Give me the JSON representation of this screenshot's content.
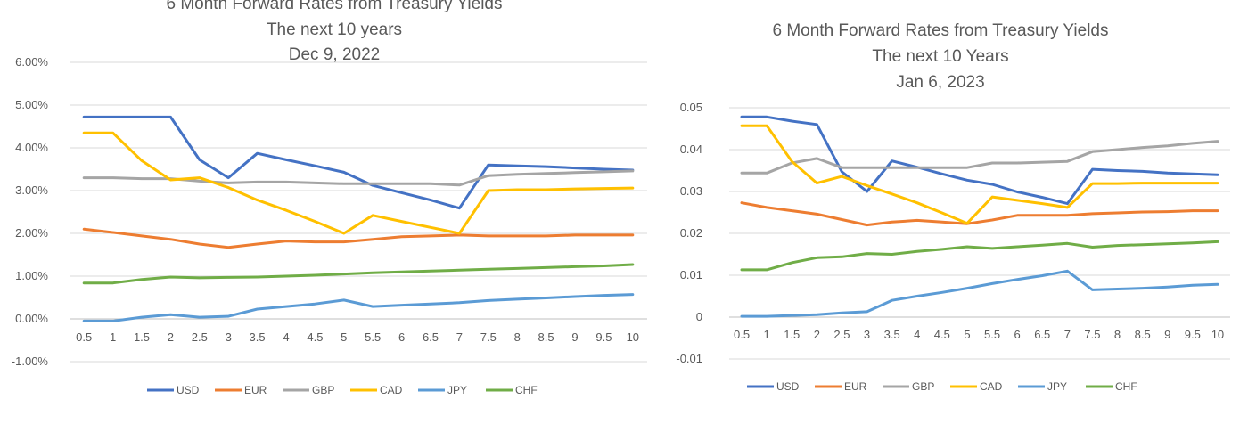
{
  "chart_data": [
    {
      "type": "line",
      "title_lines": [
        "6 Month Forward Rates from Treasury Yields",
        "The next 10 years",
        "Dec 9, 2022"
      ],
      "x": [
        "0.5",
        "1",
        "1.5",
        "2",
        "2.5",
        "3",
        "3.5",
        "4",
        "4.5",
        "5",
        "5.5",
        "6",
        "6.5",
        "7",
        "7.5",
        "8",
        "8.5",
        "9",
        "9.5",
        "10"
      ],
      "y_ticks": [
        -0.01,
        0,
        0.01,
        0.02,
        0.03,
        0.04,
        0.05,
        0.06
      ],
      "y_tick_labels": [
        "-1.00%",
        "0.00%",
        "1.00%",
        "2.00%",
        "3.00%",
        "4.00%",
        "5.00%",
        "6.00%"
      ],
      "ylim": [
        -0.01,
        0.06
      ],
      "legend_position": "bottom",
      "series": [
        {
          "name": "USD",
          "color": "#4472C4",
          "values": [
            0.0472,
            0.0472,
            0.0472,
            0.0472,
            0.0372,
            0.033,
            0.0387,
            0.0372,
            0.0358,
            0.0343,
            0.0312,
            0.0295,
            0.0278,
            0.0259,
            0.036,
            0.0358,
            0.0356,
            0.0353,
            0.035,
            0.0348
          ]
        },
        {
          "name": "EUR",
          "color": "#ED7D31",
          "values": [
            0.021,
            0.0202,
            0.0194,
            0.0186,
            0.0175,
            0.0167,
            0.0175,
            0.0182,
            0.018,
            0.018,
            0.0186,
            0.0192,
            0.0194,
            0.0196,
            0.0194,
            0.0194,
            0.0194,
            0.0196,
            0.0196,
            0.0196
          ]
        },
        {
          "name": "GBP",
          "color": "#A5A5A5",
          "values": [
            0.033,
            0.033,
            0.0328,
            0.0328,
            0.0322,
            0.0318,
            0.032,
            0.032,
            0.0318,
            0.0316,
            0.0316,
            0.0316,
            0.0316,
            0.0313,
            0.0335,
            0.0338,
            0.034,
            0.0342,
            0.0344,
            0.0346
          ]
        },
        {
          "name": "CAD",
          "color": "#FFC000",
          "values": [
            0.0435,
            0.0435,
            0.037,
            0.0325,
            0.033,
            0.0307,
            0.0278,
            0.0254,
            0.0228,
            0.02,
            0.0242,
            0.0228,
            0.0214,
            0.02,
            0.03,
            0.0302,
            0.0302,
            0.0304,
            0.0305,
            0.0306
          ]
        },
        {
          "name": "JPY",
          "color": "#5B9BD5",
          "values": [
            -0.0005,
            -0.0005,
            0.0004,
            0.001,
            0.0004,
            0.0006,
            0.0023,
            0.0029,
            0.0035,
            0.0044,
            0.0029,
            0.0032,
            0.0035,
            0.0038,
            0.0043,
            0.0046,
            0.0049,
            0.0052,
            0.0055,
            0.0057
          ]
        },
        {
          "name": "CHF",
          "color": "#70AD47",
          "values": [
            0.0084,
            0.0084,
            0.0092,
            0.0098,
            0.0096,
            0.0097,
            0.0098,
            0.01,
            0.0102,
            0.0105,
            0.0108,
            0.011,
            0.0112,
            0.0114,
            0.0116,
            0.0118,
            0.012,
            0.0122,
            0.0124,
            0.0127
          ]
        }
      ]
    },
    {
      "type": "line",
      "title_lines": [
        "6 Month Forward Rates from Treasury Yields",
        "The next 10 Years",
        "Jan 6, 2023"
      ],
      "x": [
        "0.5",
        "1",
        "1.5",
        "2",
        "2.5",
        "3",
        "3.5",
        "4",
        "4.5",
        "5",
        "5.5",
        "6",
        "6.5",
        "7",
        "7.5",
        "8",
        "8.5",
        "9",
        "9.5",
        "10"
      ],
      "y_ticks": [
        -0.01,
        0,
        0.01,
        0.02,
        0.03,
        0.04,
        0.05
      ],
      "y_tick_labels": [
        "-0.01",
        "0",
        "0.01",
        "0.02",
        "0.03",
        "0.04",
        "0.05"
      ],
      "ylim": [
        -0.01,
        0.05
      ],
      "legend_position": "bottom",
      "series": [
        {
          "name": "USD",
          "color": "#4472C4",
          "values": [
            0.0478,
            0.0478,
            0.0468,
            0.046,
            0.0347,
            0.03,
            0.0373,
            0.0358,
            0.0342,
            0.0327,
            0.0317,
            0.0299,
            0.0286,
            0.0271,
            0.0353,
            0.035,
            0.0348,
            0.0344,
            0.0342,
            0.034
          ]
        },
        {
          "name": "EUR",
          "color": "#ED7D31",
          "values": [
            0.0273,
            0.0262,
            0.0254,
            0.0246,
            0.0233,
            0.022,
            0.0227,
            0.0231,
            0.0227,
            0.0223,
            0.0232,
            0.0243,
            0.0243,
            0.0243,
            0.0247,
            0.0249,
            0.0251,
            0.0252,
            0.0254,
            0.0254
          ]
        },
        {
          "name": "GBP",
          "color": "#A5A5A5",
          "values": [
            0.0344,
            0.0344,
            0.0368,
            0.0379,
            0.0357,
            0.0357,
            0.0357,
            0.0357,
            0.0357,
            0.0357,
            0.0368,
            0.0368,
            0.037,
            0.0372,
            0.0395,
            0.04,
            0.0405,
            0.0409,
            0.0415,
            0.042
          ]
        },
        {
          "name": "CAD",
          "color": "#FFC000",
          "values": [
            0.0457,
            0.0457,
            0.0372,
            0.032,
            0.0336,
            0.0314,
            0.0294,
            0.0273,
            0.0249,
            0.0224,
            0.0287,
            0.0279,
            0.0271,
            0.0262,
            0.0319,
            0.0319,
            0.032,
            0.032,
            0.032,
            0.032
          ]
        },
        {
          "name": "JPY",
          "color": "#5B9BD5",
          "values": [
            0.0002,
            0.0002,
            0.0004,
            0.0006,
            0.001,
            0.0013,
            0.004,
            0.005,
            0.0059,
            0.0069,
            0.008,
            0.009,
            0.0099,
            0.011,
            0.0065,
            0.0067,
            0.0069,
            0.0072,
            0.0076,
            0.0078
          ]
        },
        {
          "name": "CHF",
          "color": "#70AD47",
          "values": [
            0.0113,
            0.0113,
            0.013,
            0.0142,
            0.0144,
            0.0152,
            0.015,
            0.0157,
            0.0162,
            0.0168,
            0.0164,
            0.0168,
            0.0172,
            0.0176,
            0.0167,
            0.0171,
            0.0173,
            0.0175,
            0.0177,
            0.018
          ]
        }
      ]
    }
  ]
}
